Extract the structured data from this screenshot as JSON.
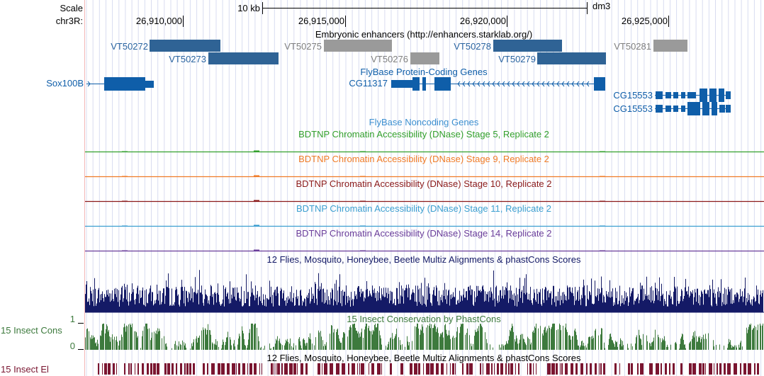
{
  "header": {
    "scale_label": "Scale",
    "chrom_label": "chr3R:",
    "scale_bar_label": "10 kb",
    "assembly": "dm3",
    "ticks": [
      "26,910,000",
      "26,915,000",
      "26,920,000",
      "26,925,000"
    ]
  },
  "tracks": {
    "enhancers": {
      "title": "Embryonic enhancers (http://enhancers.starklab.org/)",
      "items": [
        "VT50272",
        "VT50273",
        "VT50275",
        "VT50276",
        "VT50278",
        "VT50279",
        "VT50281"
      ]
    },
    "protein_genes": {
      "title": "FlyBase Protein-Coding Genes",
      "genes": [
        "Sox100B",
        "CG11317",
        "CG15553",
        "CG15553"
      ]
    },
    "noncoding": {
      "title": "FlyBase Noncoding Genes"
    },
    "dnase": [
      {
        "title": "BDTNP Chromatin Accessibility (DNase) Stage 5, Replicate 2",
        "color": "#33a02c"
      },
      {
        "title": "BDTNP Chromatin Accessibility (DNase) Stage 9, Replicate 2",
        "color": "#f07c27"
      },
      {
        "title": "BDTNP Chromatin Accessibility (DNase) Stage 10, Replicate 2",
        "color": "#8b1a1a"
      },
      {
        "title": "BDTNP Chromatin Accessibility (DNase) Stage 11, Replicate 2",
        "color": "#3c9fd0"
      },
      {
        "title": "BDTNP Chromatin Accessibility (DNase) Stage 14, Replicate 2",
        "color": "#6a3d9a"
      }
    ],
    "multiz": {
      "title": "12 Flies, Mosquito, Honeybee, Beetle Multiz Alignments & phastCons Scores",
      "color": "#141a66"
    },
    "phastcons": {
      "title": "15 Insect Conservation by PhastCons",
      "side_label": "15 Insect Cons",
      "axis_max": "1",
      "axis_min": "0",
      "color": "#3d7a3d"
    },
    "elements": {
      "title": "12 Flies, Mosquito, Honeybee, Beetle Multiz Alignments & phastCons Scores",
      "side_label": "15 Insect El",
      "color": "#7a1530"
    }
  },
  "colors": {
    "gene": "#0f5ea9",
    "enhancer_blue": "#2f6395",
    "enhancer_grey": "#9a9a9a"
  }
}
